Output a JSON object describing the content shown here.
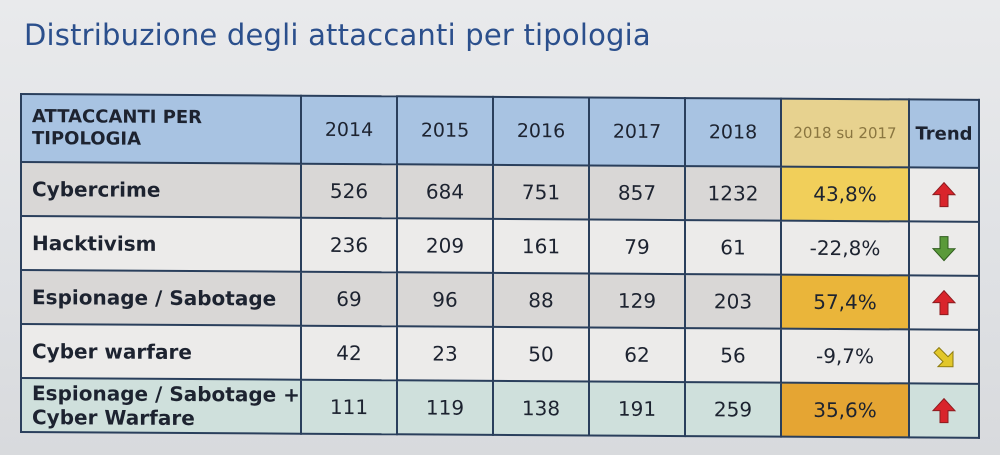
{
  "title": "Distribuzione degli attaccanti per tipologia",
  "table": {
    "headers": {
      "label": "ATTACCANTI PER TIPOLOGIA",
      "years": [
        "2014",
        "2015",
        "2016",
        "2017",
        "2018"
      ],
      "change": "2018 su 2017",
      "trend": "Trend"
    },
    "rows": [
      {
        "label": "Cybercrime",
        "values": [
          "526",
          "684",
          "751",
          "857",
          "1232"
        ],
        "change": "43,8%",
        "trend": "up",
        "trend_color": "#d9242b",
        "change_color": "#f1cf5a"
      },
      {
        "label": "Hacktivism",
        "values": [
          "236",
          "209",
          "161",
          "79",
          "61"
        ],
        "change": "-22,8%",
        "trend": "down",
        "trend_color": "#5a9a3a",
        "change_color": ""
      },
      {
        "label": "Espionage / Sabotage",
        "values": [
          "69",
          "96",
          "88",
          "129",
          "203"
        ],
        "change": "57,4%",
        "trend": "up",
        "trend_color": "#d9242b",
        "change_color": "#eab53a"
      },
      {
        "label": "Cyber warfare",
        "values": [
          "42",
          "23",
          "50",
          "62",
          "56"
        ],
        "change": "-9,7%",
        "trend": "down-right",
        "trend_color": "#e2c72a",
        "change_color": ""
      },
      {
        "label": "Espionage / Sabotage + Cyber Warfare",
        "values": [
          "111",
          "119",
          "138",
          "191",
          "259"
        ],
        "change": "35,6%",
        "trend": "up",
        "trend_color": "#d9242b",
        "change_color": "#e5a533"
      }
    ]
  }
}
